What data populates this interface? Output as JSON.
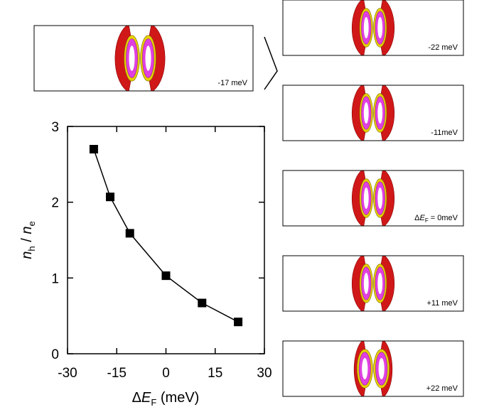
{
  "chart_data": {
    "type": "line",
    "x": [
      -22,
      -17,
      -11,
      0,
      11,
      22
    ],
    "y": [
      2.7,
      2.07,
      1.59,
      1.03,
      0.67,
      0.42
    ],
    "color": "#000000",
    "marker": "square",
    "xlim": [
      -30,
      30
    ],
    "xticks": [
      -30,
      -15,
      0,
      15,
      30
    ],
    "ylim": [
      0,
      3
    ],
    "yticks": [
      0,
      1,
      2,
      3
    ],
    "xlabel": [
      "Δ",
      "E",
      "F",
      " (meV)"
    ],
    "ylabel": [
      "n",
      "h",
      " / ",
      "n",
      "e"
    ]
  },
  "panels": [
    {
      "label": [
        "-17 meV"
      ]
    },
    {
      "label": [
        "-22 meV"
      ]
    },
    {
      "label": [
        "-11meV"
      ]
    },
    {
      "label": [
        "Δ",
        "E",
        "F",
        " = 0meV"
      ]
    },
    {
      "label": [
        "+11 meV"
      ]
    },
    {
      "label": [
        "+22 meV"
      ]
    }
  ]
}
